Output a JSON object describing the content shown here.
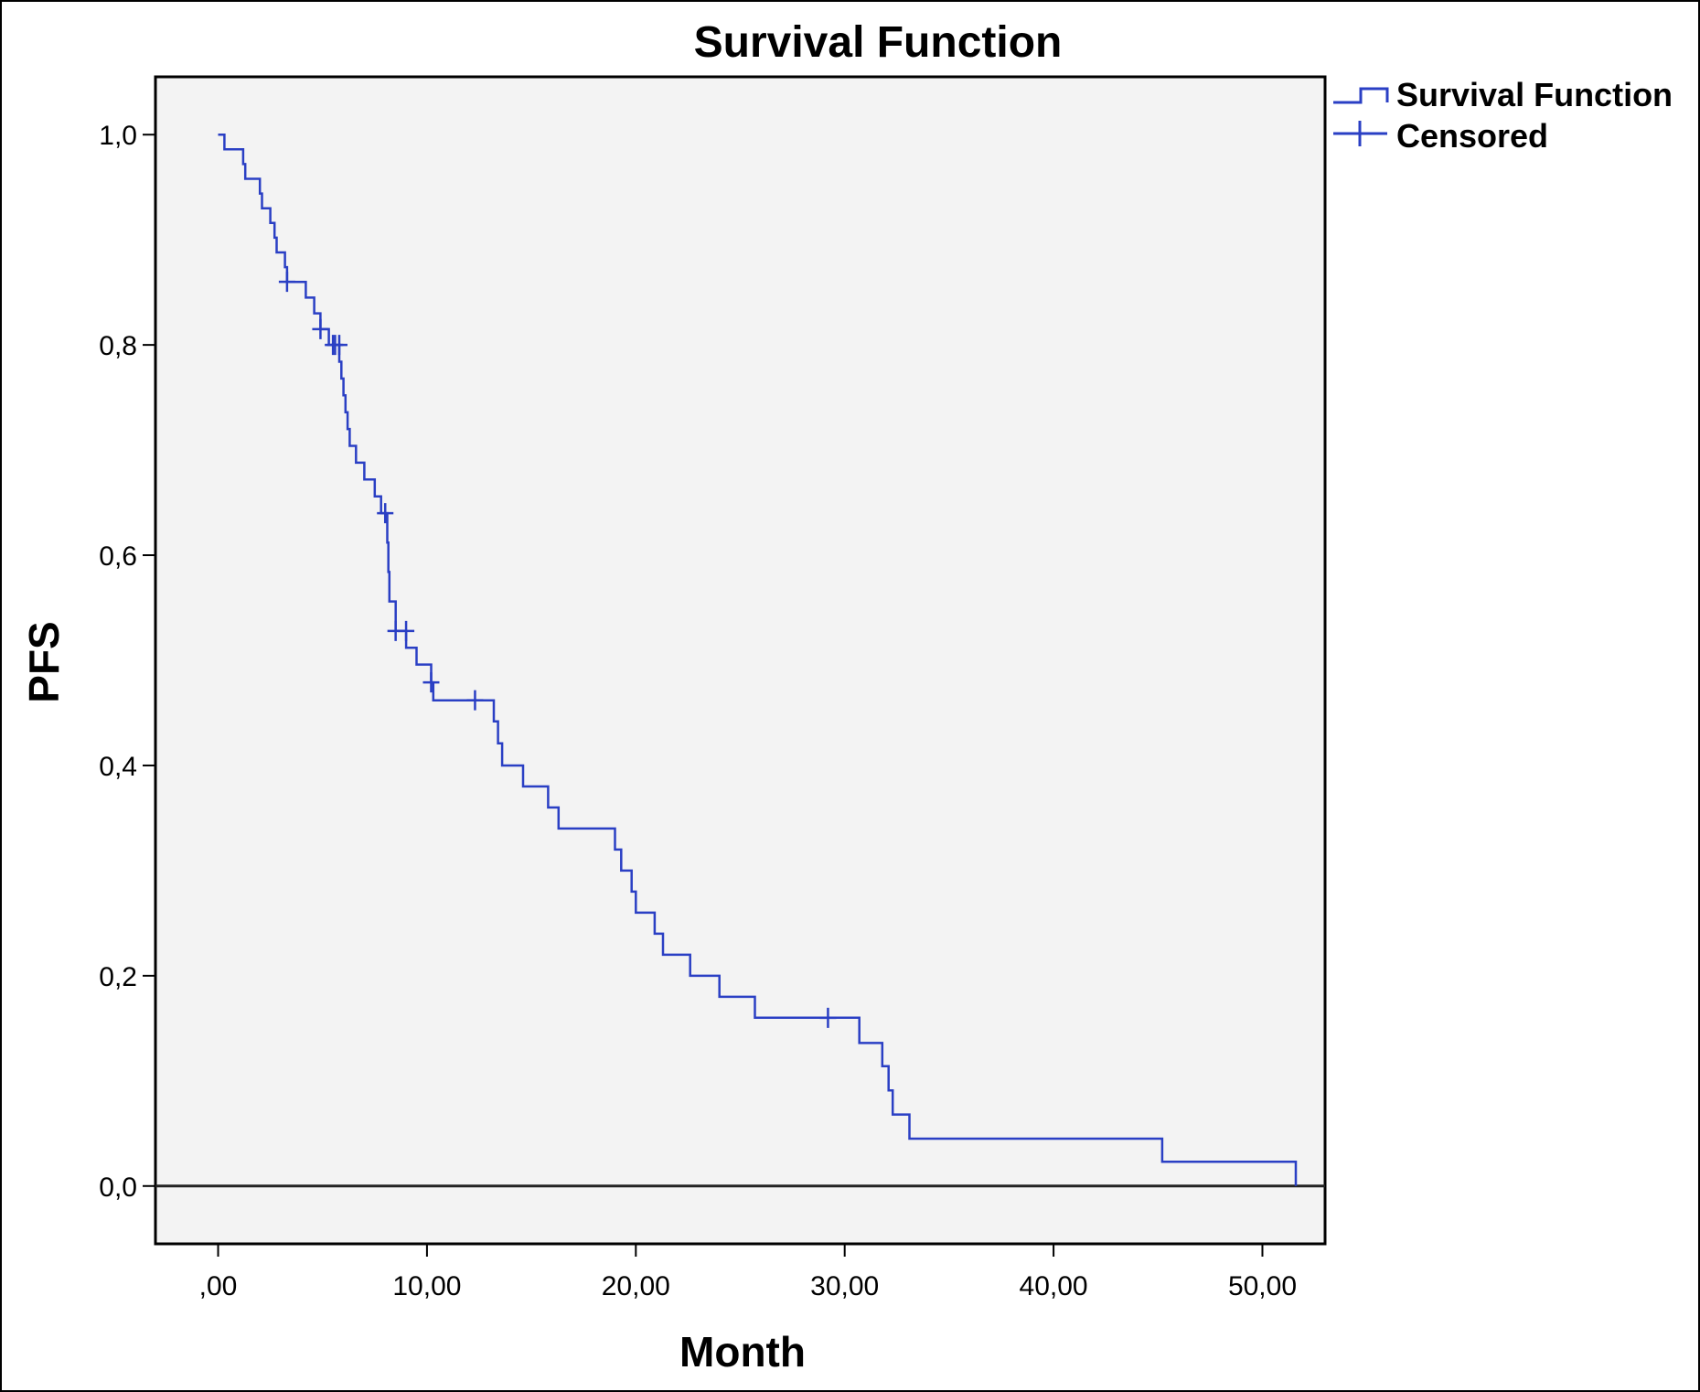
{
  "chart_data": {
    "type": "line",
    "step": true,
    "title": "Survival Function",
    "xlabel": "Month",
    "ylabel": "PFS",
    "xlim": [
      -3,
      53
    ],
    "ylim": [
      -0.055,
      1.055
    ],
    "x_ticks": [
      0,
      10,
      20,
      30,
      40,
      50
    ],
    "x_tick_labels": [
      ",00",
      "10,00",
      "20,00",
      "30,00",
      "40,00",
      "50,00"
    ],
    "y_ticks": [
      0,
      0.2,
      0.4,
      0.6,
      0.8,
      1.0
    ],
    "y_tick_labels": [
      "0,0",
      "0,2",
      "0,4",
      "0,6",
      "0,8",
      "1,0"
    ],
    "grid": false,
    "reference_line_y": 0,
    "legend": {
      "position": "right-top",
      "entries": [
        "Survival Function",
        "Censored"
      ]
    },
    "colors": {
      "series": "#2a3fc4",
      "plot_background": "#f3f3f3",
      "axis": "#000000"
    },
    "series": [
      {
        "name": "Survival Function",
        "points": [
          [
            0,
            1.0
          ],
          [
            0.3,
            1.0
          ],
          [
            0.3,
            0.986
          ],
          [
            1.2,
            0.986
          ],
          [
            1.2,
            0.972
          ],
          [
            1.3,
            0.972
          ],
          [
            1.3,
            0.958
          ],
          [
            2.0,
            0.958
          ],
          [
            2.0,
            0.944
          ],
          [
            2.1,
            0.944
          ],
          [
            2.1,
            0.93
          ],
          [
            2.5,
            0.93
          ],
          [
            2.5,
            0.916
          ],
          [
            2.7,
            0.916
          ],
          [
            2.7,
            0.902
          ],
          [
            2.8,
            0.902
          ],
          [
            2.8,
            0.888
          ],
          [
            3.2,
            0.888
          ],
          [
            3.2,
            0.874
          ],
          [
            3.3,
            0.874
          ],
          [
            3.3,
            0.86
          ],
          [
            4.2,
            0.86
          ],
          [
            4.2,
            0.845
          ],
          [
            4.6,
            0.845
          ],
          [
            4.6,
            0.83
          ],
          [
            4.9,
            0.83
          ],
          [
            4.9,
            0.815
          ],
          [
            5.3,
            0.815
          ],
          [
            5.3,
            0.8
          ],
          [
            5.8,
            0.8
          ],
          [
            5.8,
            0.784
          ],
          [
            5.9,
            0.784
          ],
          [
            5.9,
            0.768
          ],
          [
            6.0,
            0.768
          ],
          [
            6.0,
            0.752
          ],
          [
            6.1,
            0.752
          ],
          [
            6.1,
            0.736
          ],
          [
            6.2,
            0.736
          ],
          [
            6.2,
            0.72
          ],
          [
            6.3,
            0.72
          ],
          [
            6.3,
            0.704
          ],
          [
            6.6,
            0.704
          ],
          [
            6.6,
            0.688
          ],
          [
            7.0,
            0.688
          ],
          [
            7.0,
            0.672
          ],
          [
            7.5,
            0.672
          ],
          [
            7.5,
            0.656
          ],
          [
            7.8,
            0.656
          ],
          [
            7.8,
            0.64
          ],
          [
            8.1,
            0.64
          ],
          [
            8.1,
            0.612
          ],
          [
            8.15,
            0.612
          ],
          [
            8.15,
            0.584
          ],
          [
            8.2,
            0.584
          ],
          [
            8.2,
            0.556
          ],
          [
            8.5,
            0.556
          ],
          [
            8.5,
            0.528
          ],
          [
            9.0,
            0.528
          ],
          [
            9.0,
            0.512
          ],
          [
            9.5,
            0.512
          ],
          [
            9.5,
            0.496
          ],
          [
            10.2,
            0.496
          ],
          [
            10.2,
            0.479
          ],
          [
            10.3,
            0.479
          ],
          [
            10.3,
            0.462
          ],
          [
            13.2,
            0.462
          ],
          [
            13.2,
            0.442
          ],
          [
            13.4,
            0.442
          ],
          [
            13.4,
            0.421
          ],
          [
            13.6,
            0.421
          ],
          [
            13.6,
            0.4
          ],
          [
            14.6,
            0.4
          ],
          [
            14.6,
            0.38
          ],
          [
            15.8,
            0.38
          ],
          [
            15.8,
            0.36
          ],
          [
            16.3,
            0.36
          ],
          [
            16.3,
            0.34
          ],
          [
            19.0,
            0.34
          ],
          [
            19.0,
            0.32
          ],
          [
            19.3,
            0.32
          ],
          [
            19.3,
            0.3
          ],
          [
            19.8,
            0.3
          ],
          [
            19.8,
            0.28
          ],
          [
            20.0,
            0.28
          ],
          [
            20.0,
            0.26
          ],
          [
            20.9,
            0.26
          ],
          [
            20.9,
            0.24
          ],
          [
            21.3,
            0.24
          ],
          [
            21.3,
            0.22
          ],
          [
            22.6,
            0.22
          ],
          [
            22.6,
            0.2
          ],
          [
            24.0,
            0.2
          ],
          [
            24.0,
            0.18
          ],
          [
            25.7,
            0.18
          ],
          [
            25.7,
            0.16
          ],
          [
            30.7,
            0.16
          ],
          [
            30.7,
            0.136
          ],
          [
            31.8,
            0.136
          ],
          [
            31.8,
            0.114
          ],
          [
            32.1,
            0.114
          ],
          [
            32.1,
            0.091
          ],
          [
            32.3,
            0.091
          ],
          [
            32.3,
            0.068
          ],
          [
            33.1,
            0.068
          ],
          [
            33.1,
            0.045
          ],
          [
            45.2,
            0.045
          ],
          [
            45.2,
            0.023
          ],
          [
            51.6,
            0.023
          ],
          [
            51.6,
            0.0
          ]
        ]
      }
    ],
    "censored": [
      [
        3.3,
        0.86
      ],
      [
        4.9,
        0.815
      ],
      [
        5.5,
        0.8
      ],
      [
        5.6,
        0.8
      ],
      [
        5.8,
        0.8
      ],
      [
        8.0,
        0.64
      ],
      [
        8.5,
        0.528
      ],
      [
        9.0,
        0.528
      ],
      [
        10.2,
        0.479
      ],
      [
        12.3,
        0.462
      ],
      [
        29.2,
        0.16
      ]
    ]
  }
}
